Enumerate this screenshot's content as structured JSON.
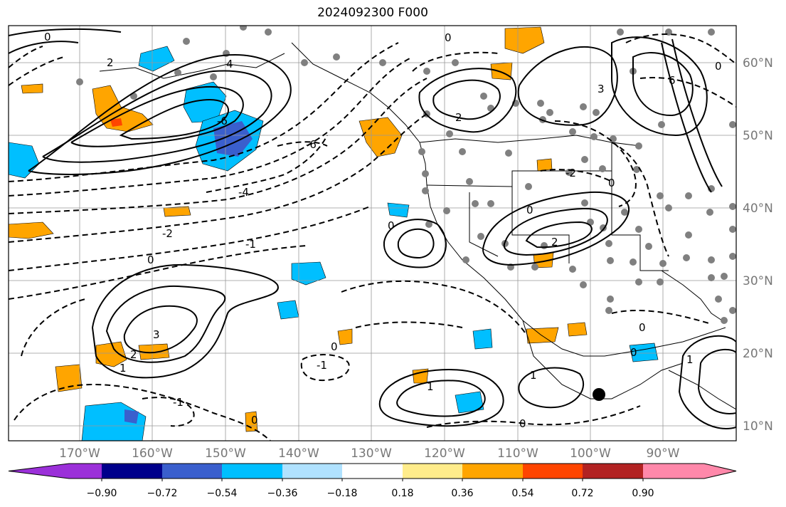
{
  "title": "2024092300 F000",
  "latitude_labels": [
    "60°N",
    "50°N",
    "40°N",
    "30°N",
    "20°N",
    "10°N"
  ],
  "longitude_labels": [
    "170°W",
    "160°W",
    "150°W",
    "140°W",
    "130°W",
    "120°W",
    "110°W",
    "100°W",
    "90°W"
  ],
  "colorbar": {
    "labels": [
      "−0.90",
      "−0.72",
      "−0.54",
      "−0.36",
      "−0.18",
      "0.18",
      "0.36",
      "0.54",
      "0.72",
      "0.90"
    ],
    "colors": [
      "#9b30d9",
      "#00008b",
      "#3a5fcd",
      "#00bfff",
      "#b0e2ff",
      "#ffffff",
      "#ffec8b",
      "#ffa500",
      "#ff4500",
      "#b22222",
      "#ff88aa"
    ]
  },
  "contour_labels": [
    "0",
    "1",
    "2",
    "4",
    "6",
    "-1",
    "-2",
    "-4",
    "-6",
    "3",
    "0",
    "1",
    "2",
    "0",
    "-1",
    "0",
    "-2"
  ]
}
